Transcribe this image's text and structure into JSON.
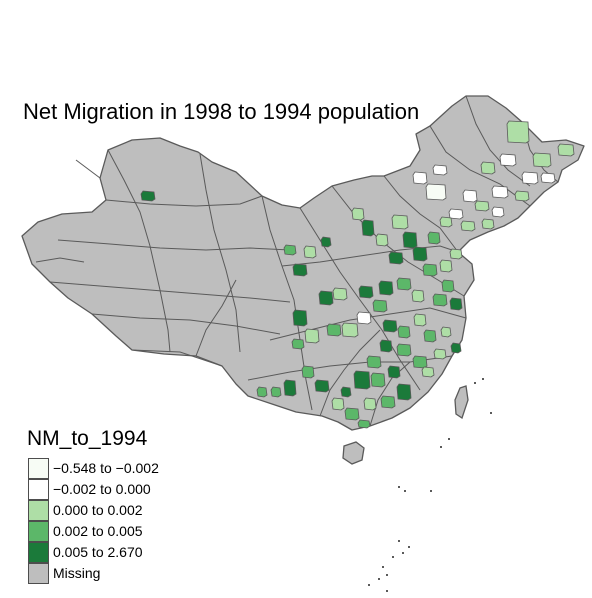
{
  "title": "Net Migration in 1998 to 1994 population",
  "legend": {
    "title": "NM_to_1994",
    "items": [
      {
        "label": "−0.548 to −0.002",
        "color": "#f7fcf5"
      },
      {
        "label": "−0.002 to 0.000",
        "color": "#ffffff"
      },
      {
        "label": "0.000 to 0.002",
        "color": "#aedea6"
      },
      {
        "label": "0.002 to 0.005",
        "color": "#5cb769"
      },
      {
        "label": "0.005 to 2.670",
        "color": "#1b7a3a"
      },
      {
        "label": "Missing",
        "color": "#bebebe"
      }
    ]
  },
  "colors": {
    "border": "#5a5a5a",
    "missing": "#bebebe"
  }
}
